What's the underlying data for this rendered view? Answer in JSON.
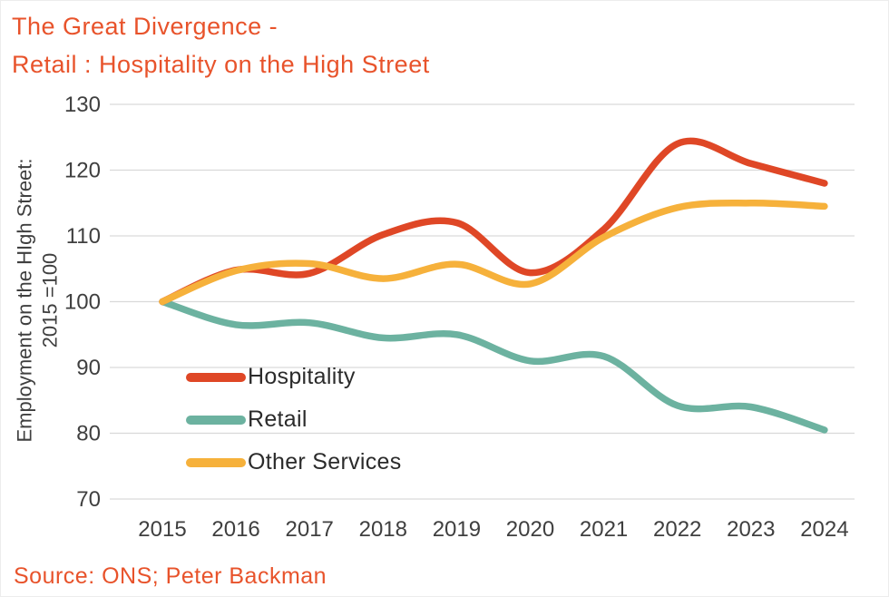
{
  "header": {
    "title_line1": "The Great Divergence -",
    "title_line2": "Retail : Hospitality on the High Street"
  },
  "footer": {
    "source": "Source: ONS; Peter Backman"
  },
  "colors": {
    "title": "#E8532B",
    "source": "#E8532B",
    "grid": "#D9D9D9",
    "axis_text": "#3F3F3F"
  },
  "chart_data": {
    "type": "line",
    "title": "The Great Divergence - Retail : Hospitality on the High Street",
    "xlabel": "",
    "ylabel": "Employment on the HIgh Street: 2015 =100",
    "ylabel_lines": [
      "Employment on the HIgh Street:",
      "2015 =100"
    ],
    "categories": [
      "2015",
      "2016",
      "2017",
      "2018",
      "2019",
      "2020",
      "2021",
      "2022",
      "2023",
      "2024"
    ],
    "yticks": [
      70,
      80,
      90,
      100,
      110,
      120,
      130
    ],
    "ylim": [
      70,
      130
    ],
    "grid": "horizontal",
    "legend_position": "inside-left",
    "line_style": "smooth",
    "series": [
      {
        "name": "Hospitality",
        "color": "#DF4726",
        "values": [
          100,
          104.8,
          104.3,
          110.2,
          112,
          104.4,
          111,
          124,
          121,
          118
        ]
      },
      {
        "name": "Retail",
        "color": "#6CB2A0",
        "values": [
          100,
          96.5,
          96.8,
          94.5,
          95,
          91,
          91.7,
          84.2,
          84,
          80.5
        ]
      },
      {
        "name": "Other Services",
        "color": "#F6B13B",
        "values": [
          100,
          104.7,
          105.8,
          103.5,
          105.7,
          102.7,
          109.8,
          114.3,
          115,
          114.5
        ]
      }
    ]
  }
}
